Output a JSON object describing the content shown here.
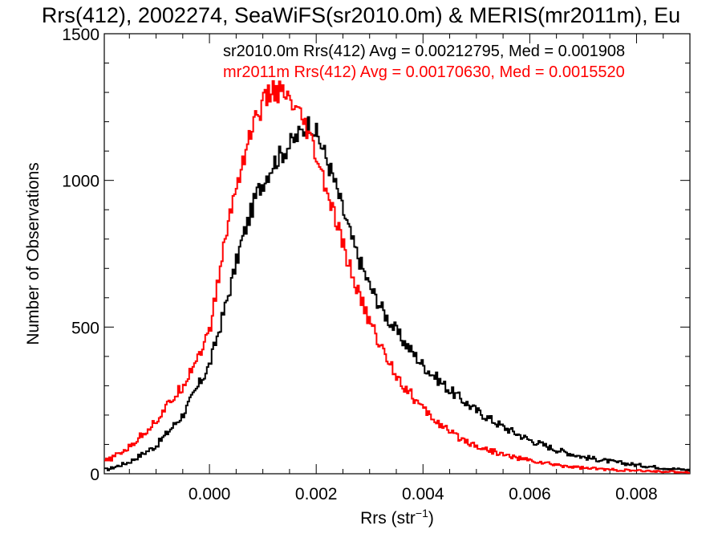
{
  "chart_data": {
    "type": "histogram",
    "title": "Rrs(412), 2002274, SeaWiFS(sr2010.0m) & MERIS(mr2011m), Eu",
    "xlabel_main": "Rrs (str",
    "xlabel_sup": "−1",
    "xlabel_close": ")",
    "ylabel": "Number of Observations",
    "xlim": [
      -0.00197,
      0.009
    ],
    "ylim": [
      0,
      1500
    ],
    "xticks": [
      0.0,
      0.002,
      0.004,
      0.006,
      0.008
    ],
    "xtick_labels": [
      "0.000",
      "0.002",
      "0.004",
      "0.006",
      "0.008"
    ],
    "yticks": [
      0,
      500,
      1000,
      1500
    ],
    "ytick_labels": [
      "0",
      "500",
      "1000",
      "1500"
    ],
    "grid": false,
    "legend": [
      {
        "text": "sr2010.0m Rrs(412) Avg = 0.00212795, Med = 0.001908",
        "color": "#000000"
      },
      {
        "text": "mr2011m Rrs(412) Avg = 0.00170630, Med = 0.0015520",
        "color": "#ff0000"
      }
    ],
    "series": [
      {
        "color": "#000000",
        "x": [
          -0.0019,
          -0.0015,
          -0.001,
          -0.0005,
          0.0,
          0.0003,
          0.0006,
          0.0009,
          0.0012,
          0.0015,
          0.0017,
          0.0019,
          0.0021,
          0.0023,
          0.0025,
          0.0027,
          0.003,
          0.0033,
          0.0036,
          0.004,
          0.0045,
          0.005,
          0.0055,
          0.006,
          0.0065,
          0.007,
          0.0075,
          0.008,
          0.0085,
          0.009
        ],
        "y": [
          15,
          40,
          95,
          200,
          370,
          570,
          790,
          960,
          1060,
          1120,
          1160,
          1200,
          1120,
          1020,
          900,
          780,
          640,
          540,
          460,
          370,
          285,
          215,
          160,
          115,
          82,
          57,
          42,
          30,
          20,
          12
        ]
      },
      {
        "color": "#ff0000",
        "x": [
          -0.0019,
          -0.0015,
          -0.001,
          -0.0005,
          0.0,
          0.0002,
          0.0004,
          0.0006,
          0.0008,
          0.001,
          0.0012,
          0.0014,
          0.0016,
          0.0018,
          0.002,
          0.0022,
          0.0024,
          0.0026,
          0.0028,
          0.003,
          0.0033,
          0.0036,
          0.004,
          0.0045,
          0.005,
          0.0055,
          0.006,
          0.0065,
          0.007,
          0.0075,
          0.008,
          0.009
        ],
        "y": [
          45,
          90,
          180,
          300,
          480,
          700,
          900,
          1050,
          1180,
          1260,
          1310,
          1290,
          1240,
          1180,
          1080,
          960,
          840,
          720,
          610,
          520,
          400,
          310,
          220,
          140,
          95,
          65,
          45,
          30,
          20,
          14,
          10,
          5
        ]
      }
    ]
  }
}
